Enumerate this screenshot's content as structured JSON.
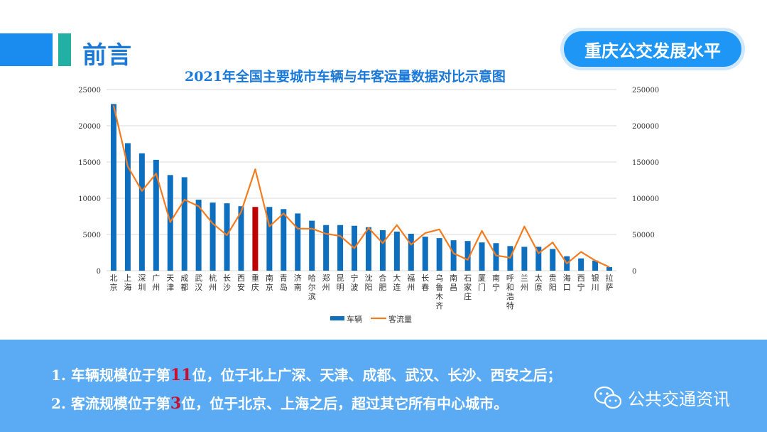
{
  "header": {
    "title": "前言",
    "badge": "重庆公交发展水平"
  },
  "chart_data": {
    "type": "bar+line",
    "title": "2021年全国主要城市车辆与年客运量数据对比示意图",
    "categories": [
      "北京",
      "上海",
      "深圳",
      "广州",
      "天津",
      "成都",
      "武汉",
      "杭州",
      "长沙",
      "西安",
      "重庆",
      "南京",
      "青岛",
      "济南",
      "哈尔滨",
      "郑州",
      "昆明",
      "宁波",
      "沈阳",
      "合肥",
      "大连",
      "福州",
      "长春",
      "乌鲁木齐",
      "南昌",
      "石家庄",
      "厦门",
      "南宁",
      "呼和浩特",
      "兰州",
      "太原",
      "贵阳",
      "海口",
      "西宁",
      "银川",
      "拉萨"
    ],
    "highlight_category": "重庆",
    "series": [
      {
        "name": "车辆",
        "type": "bar",
        "axis": "left",
        "color": "#0f6fbf",
        "highlight_color": "#c00000",
        "values": [
          23000,
          17600,
          16200,
          15300,
          13200,
          12900,
          9800,
          9400,
          9300,
          8900,
          8800,
          8800,
          8500,
          7900,
          6900,
          6300,
          6300,
          6200,
          6000,
          5600,
          5400,
          5100,
          4700,
          4500,
          4200,
          4100,
          3900,
          3800,
          3400,
          3300,
          3300,
          3000,
          2000,
          1700,
          1400,
          500
        ]
      },
      {
        "name": "客流量",
        "type": "line",
        "axis": "right",
        "color": "#f47c20",
        "values": [
          228000,
          144000,
          110000,
          134000,
          67000,
          98000,
          89000,
          65000,
          49000,
          81000,
          140000,
          61000,
          79000,
          58000,
          58000,
          51000,
          48000,
          31000,
          59000,
          38000,
          63000,
          36000,
          52000,
          57000,
          24000,
          15000,
          55000,
          21000,
          18000,
          61000,
          24000,
          39000,
          10000,
          26000,
          14000,
          5000
        ]
      }
    ],
    "y_left": {
      "min": 0,
      "max": 25000,
      "step": 5000
    },
    "y_right": {
      "min": 0,
      "max": 250000,
      "step": 50000
    },
    "grid": true,
    "legend": "bottom-center"
  },
  "notes": {
    "line1": {
      "prefix": "1. 车辆规模位于第",
      "rank": "11",
      "suffix": "位，位于北上广深、天津、成都、武汉、长沙、西安之后；"
    },
    "line2": {
      "prefix": "2. 客流规模位于第",
      "rank": "3",
      "suffix": "位，位于北京、上海之后，超过其它所有中心城市。"
    }
  },
  "footer": {
    "wechat_name": "公共交通资讯",
    "icon": "wechat-icon"
  }
}
